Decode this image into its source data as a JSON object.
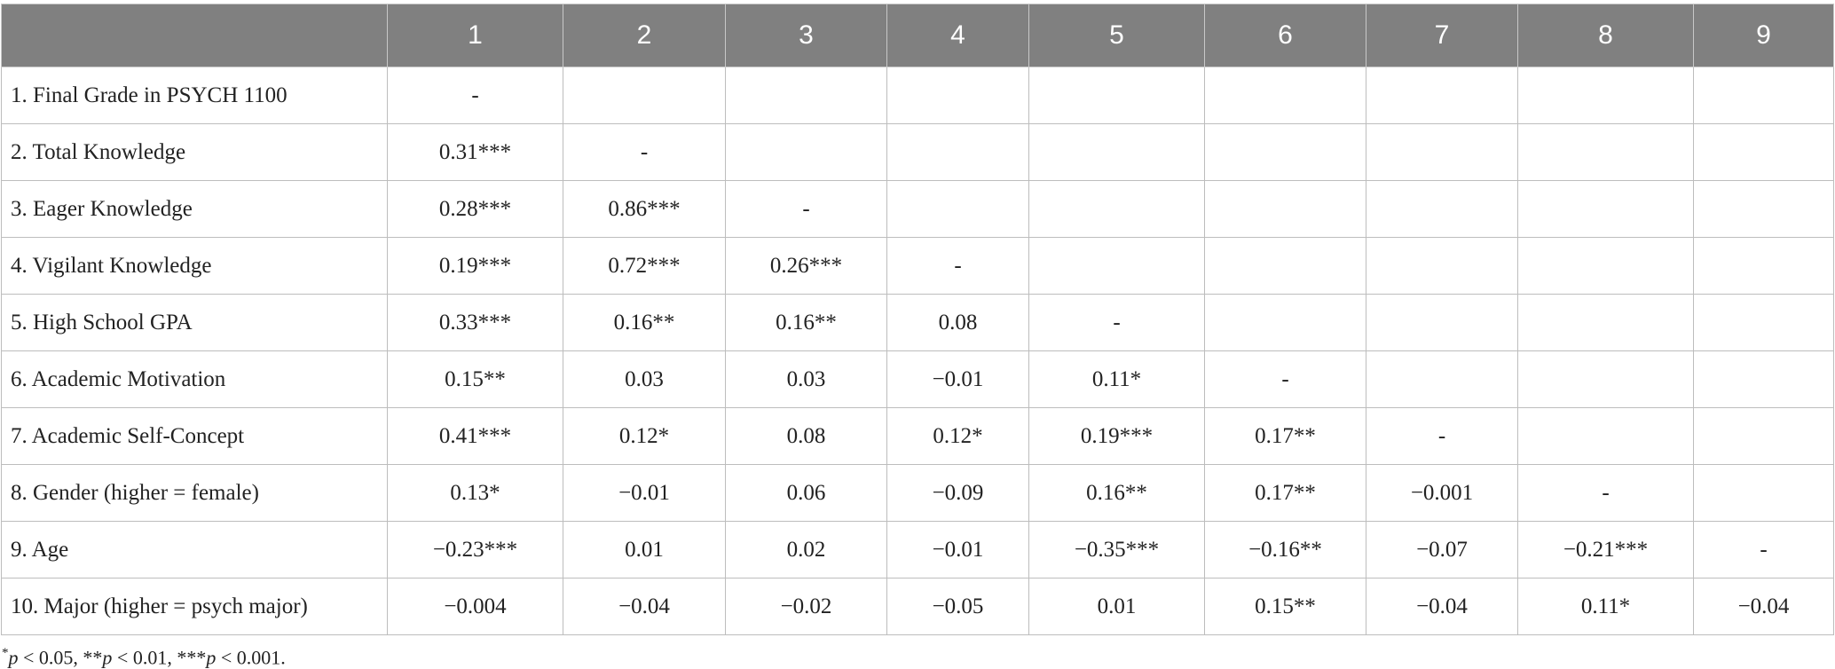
{
  "table": {
    "header": [
      "1",
      "2",
      "3",
      "4",
      "5",
      "6",
      "7",
      "8",
      "9"
    ],
    "rows": [
      {
        "label": "1. Final Grade in PSYCH 1100",
        "cells": [
          "-"
        ]
      },
      {
        "label": "2. Total Knowledge",
        "cells": [
          "0.31***",
          "-"
        ]
      },
      {
        "label": "3. Eager Knowledge",
        "cells": [
          "0.28***",
          "0.86***",
          "-"
        ]
      },
      {
        "label": "4. Vigilant Knowledge",
        "cells": [
          "0.19***",
          "0.72***",
          "0.26***",
          "-"
        ]
      },
      {
        "label": "5. High School GPA",
        "cells": [
          "0.33***",
          "0.16**",
          "0.16**",
          "0.08",
          "-"
        ]
      },
      {
        "label": "6. Academic Motivation",
        "cells": [
          "0.15**",
          "0.03",
          "0.03",
          "−0.01",
          "0.11*",
          "-"
        ]
      },
      {
        "label": "7. Academic Self-Concept",
        "cells": [
          "0.41***",
          "0.12*",
          "0.08",
          "0.12*",
          "0.19***",
          "0.17**",
          "-"
        ]
      },
      {
        "label": "8. Gender (higher = female)",
        "cells": [
          "0.13*",
          "−0.01",
          "0.06",
          "−0.09",
          "0.16**",
          "0.17**",
          "−0.001",
          "-"
        ]
      },
      {
        "label": "9. Age",
        "cells": [
          "−0.23***",
          "0.01",
          "0.02",
          "−0.01",
          "−0.35***",
          "−0.16**",
          "−0.07",
          "−0.21***",
          "-"
        ]
      },
      {
        "label": "10. Major (higher = psych major)",
        "cells": [
          "−0.004",
          "−0.04",
          "−0.02",
          "−0.05",
          "0.01",
          "0.15**",
          "−0.04",
          "0.11*",
          "−0.04"
        ]
      }
    ]
  },
  "footnote": [
    "*",
    "p",
    " < 0.05, **",
    "p",
    " < 0.01, ***",
    "p",
    " < 0.001."
  ]
}
